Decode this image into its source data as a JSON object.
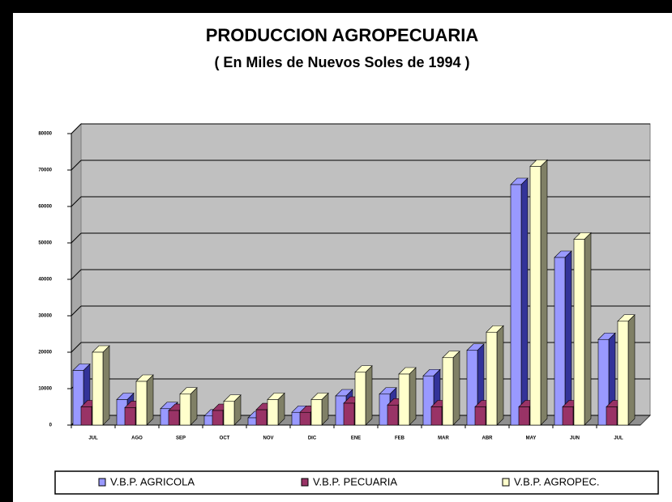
{
  "chart_data": {
    "type": "bar3d",
    "title": "PRODUCCION AGROPECUARIA",
    "subtitle": "( En Miles de Nuevos Soles de 1994 )",
    "categories": [
      "JUL",
      "AGO",
      "SEP",
      "OCT",
      "NOV",
      "DIC",
      "ENE",
      "FEB",
      "MAR",
      "ABR",
      "MAY",
      "JUN",
      "JUL"
    ],
    "series": [
      {
        "name": "V.B.P. AGRICOLA",
        "color": "#9999ff",
        "side": "#333399",
        "values": [
          15000,
          7000,
          4500,
          2500,
          2000,
          3500,
          8000,
          8500,
          13500,
          20500,
          66000,
          46000,
          23500
        ]
      },
      {
        "name": "V.B.P. PECUARIA",
        "color": "#993366",
        "side": "#4d1a33",
        "values": [
          5000,
          4800,
          4000,
          4000,
          4200,
          3500,
          6000,
          5500,
          5000,
          5000,
          5000,
          5000,
          5000
        ]
      },
      {
        "name": "V.B.P. AGROPEC.",
        "color": "#ffffcc",
        "side": "#808066",
        "values": [
          20000,
          12000,
          8500,
          6500,
          7000,
          7000,
          14500,
          14000,
          18500,
          25500,
          71000,
          51000,
          28500
        ]
      }
    ],
    "ylim": [
      0,
      80000
    ],
    "yticks": [
      0,
      10000,
      20000,
      30000,
      40000,
      50000,
      60000,
      70000,
      80000
    ],
    "grid": true,
    "legend": "bottom"
  }
}
